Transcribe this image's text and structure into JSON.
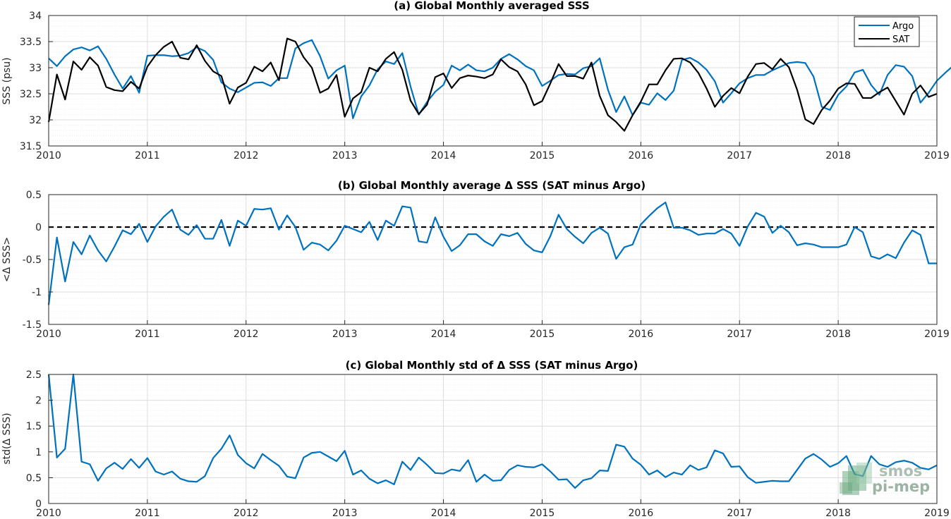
{
  "colors": {
    "argo": "#0072BD",
    "sat": "#000000",
    "grid": "#dcdcdc",
    "axis": "#262626"
  },
  "watermark": {
    "line1": "smos",
    "line2": "pi-mep",
    "icon": "smos-pimep-logo-icon"
  },
  "chart_data": [
    {
      "type": "line",
      "title": "(a) Global Monthly averaged SSS",
      "xlabel": "",
      "ylabel": "SSS (psu)",
      "xlim": [
        2010,
        2019
      ],
      "ylim": [
        31.5,
        34
      ],
      "xticks": [
        2010,
        2011,
        2012,
        2013,
        2014,
        2015,
        2016,
        2017,
        2018,
        2019
      ],
      "yticks": [
        31.5,
        32,
        32.5,
        33,
        33.5,
        34
      ],
      "ytick_labels": [
        "31.5",
        "32",
        "32.5",
        "33",
        "33.5",
        "34"
      ],
      "grid": true,
      "legend": "top-right",
      "start_year": 2010,
      "series": [
        {
          "name": "Argo",
          "color": "#0072BD",
          "values": [
            33.18,
            33.03,
            33.22,
            33.35,
            33.39,
            33.33,
            33.41,
            33.17,
            32.87,
            32.6,
            32.84,
            32.52,
            33.23,
            33.24,
            33.24,
            33.22,
            33.23,
            33.28,
            33.39,
            33.32,
            33.15,
            32.72,
            32.6,
            32.53,
            32.62,
            32.71,
            32.72,
            32.65,
            32.8,
            32.8,
            33.37,
            33.47,
            33.53,
            33.22,
            32.79,
            32.95,
            33.04,
            32.03,
            32.45,
            32.66,
            32.97,
            33.12,
            33.07,
            33.28,
            32.64,
            32.1,
            32.34,
            32.54,
            32.67,
            33.04,
            32.95,
            33.06,
            32.95,
            32.93,
            33.0,
            33.17,
            33.26,
            33.16,
            33.03,
            32.95,
            32.65,
            32.75,
            32.86,
            32.88,
            32.87,
            32.99,
            33.03,
            33.18,
            32.58,
            32.15,
            32.45,
            32.09,
            32.33,
            32.29,
            32.51,
            32.38,
            32.56,
            33.15,
            33.19,
            33.1,
            32.96,
            32.74,
            32.33,
            32.51,
            32.7,
            32.8,
            32.86,
            32.86,
            32.95,
            33.02,
            33.09,
            33.11,
            33.09,
            32.83,
            32.25,
            32.19,
            32.48,
            32.64,
            32.91,
            32.96,
            32.67,
            32.48,
            32.86,
            33.05,
            33.02,
            32.84,
            32.33,
            32.52,
            32.75,
            32.9,
            33.04
          ]
        },
        {
          "name": "SAT",
          "color": "#000000",
          "values": [
            31.96,
            32.87,
            32.39,
            33.12,
            32.96,
            33.2,
            33.04,
            32.63,
            32.57,
            32.55,
            32.73,
            32.6,
            33.02,
            33.24,
            33.4,
            33.5,
            33.19,
            33.16,
            33.43,
            33.13,
            32.93,
            32.84,
            32.31,
            32.62,
            32.71,
            33.02,
            32.93,
            33.1,
            32.76,
            33.56,
            33.5,
            33.2,
            33.0,
            32.52,
            32.6,
            32.86,
            32.06,
            32.41,
            32.53,
            33.0,
            32.93,
            33.17,
            33.3,
            32.96,
            32.37,
            32.11,
            32.29,
            32.82,
            32.89,
            32.61,
            32.8,
            32.85,
            32.83,
            32.8,
            32.87,
            33.16,
            33.01,
            32.93,
            32.68,
            32.28,
            32.36,
            32.7,
            33.07,
            32.84,
            32.84,
            32.79,
            33.1,
            32.46,
            32.09,
            31.96,
            31.79,
            32.09,
            32.35,
            32.68,
            32.68,
            32.95,
            33.17,
            33.18,
            33.1,
            32.9,
            32.6,
            32.25,
            32.46,
            32.61,
            32.51,
            32.83,
            33.07,
            33.09,
            32.97,
            33.17,
            33.01,
            32.58,
            32.01,
            31.92,
            32.19,
            32.37,
            32.6,
            32.7,
            32.69,
            32.42,
            32.42,
            32.53,
            32.62,
            32.36,
            32.1,
            32.5,
            32.66,
            32.44,
            32.5
          ]
        }
      ]
    },
    {
      "type": "line",
      "title": "(b) Global Monthly average Δ SSS (SAT minus Argo)",
      "xlabel": "",
      "ylabel": "<Δ SSS>",
      "xlim": [
        2010,
        2019
      ],
      "ylim": [
        -1.5,
        0.5
      ],
      "xticks": [
        2010,
        2011,
        2012,
        2013,
        2014,
        2015,
        2016,
        2017,
        2018,
        2019
      ],
      "yticks": [
        -1.5,
        -1,
        -0.5,
        0,
        0.5
      ],
      "ytick_labels": [
        "-1.5",
        "-1",
        "-0.5",
        "0",
        "0.5"
      ],
      "grid": true,
      "reference_line": 0,
      "start_year": 2010,
      "series": [
        {
          "color": "#0072BD",
          "values": [
            -1.2,
            -0.16,
            -0.84,
            -0.23,
            -0.42,
            -0.13,
            -0.36,
            -0.53,
            -0.3,
            -0.05,
            -0.11,
            0.05,
            -0.23,
            0.01,
            0.16,
            0.27,
            -0.04,
            -0.12,
            0.03,
            -0.18,
            -0.18,
            0.11,
            -0.29,
            0.1,
            0.02,
            0.28,
            0.27,
            0.29,
            -0.04,
            0.18,
            0.0,
            -0.35,
            -0.24,
            -0.27,
            -0.36,
            -0.21,
            0.02,
            -0.03,
            -0.08,
            0.08,
            -0.2,
            0.1,
            0.02,
            0.32,
            0.3,
            -0.22,
            -0.24,
            0.15,
            -0.15,
            -0.37,
            -0.28,
            -0.11,
            -0.11,
            -0.22,
            -0.29,
            -0.11,
            -0.14,
            -0.09,
            -0.26,
            -0.36,
            -0.39,
            -0.14,
            0.19,
            -0.03,
            -0.15,
            -0.25,
            -0.09,
            -0.01,
            -0.1,
            -0.49,
            -0.31,
            -0.27,
            0.04,
            0.17,
            0.29,
            0.38,
            -0.01,
            -0.01,
            -0.05,
            -0.12,
            -0.1,
            -0.1,
            -0.03,
            -0.1,
            -0.29,
            0.01,
            0.22,
            0.16,
            -0.09,
            0.02,
            -0.08,
            -0.28,
            -0.25,
            -0.27,
            -0.31,
            -0.31,
            -0.31,
            -0.27,
            0.0,
            -0.08,
            -0.45,
            -0.49,
            -0.42,
            -0.48,
            -0.24,
            -0.05,
            -0.12,
            -0.56,
            -0.56
          ]
        }
      ]
    },
    {
      "type": "line",
      "title": "(c) Global Monthly std of Δ SSS (SAT minus Argo)",
      "xlabel": "",
      "ylabel": "std(Δ SSS)",
      "xlim": [
        2010,
        2019
      ],
      "ylim": [
        0,
        2.5
      ],
      "xticks": [
        2010,
        2011,
        2012,
        2013,
        2014,
        2015,
        2016,
        2017,
        2018,
        2019
      ],
      "yticks": [
        0,
        0.5,
        1,
        1.5,
        2,
        2.5
      ],
      "ytick_labels": [
        "0",
        "0.5",
        "1",
        "1.5",
        "2",
        "2.5"
      ],
      "grid": true,
      "start_year": 2010,
      "series": [
        {
          "color": "#0072BD",
          "values": [
            2.5,
            0.89,
            1.06,
            2.5,
            0.81,
            0.76,
            0.44,
            0.68,
            0.79,
            0.67,
            0.86,
            0.69,
            0.88,
            0.62,
            0.56,
            0.62,
            0.48,
            0.43,
            0.42,
            0.53,
            0.88,
            1.06,
            1.32,
            0.94,
            0.78,
            0.68,
            0.96,
            0.84,
            0.73,
            0.52,
            0.49,
            0.89,
            0.98,
            1.0,
            0.91,
            0.82,
            1.02,
            0.56,
            0.64,
            0.48,
            0.39,
            0.45,
            0.37,
            0.81,
            0.65,
            0.89,
            0.75,
            0.59,
            0.58,
            0.66,
            0.63,
            0.84,
            0.42,
            0.56,
            0.44,
            0.45,
            0.65,
            0.74,
            0.71,
            0.7,
            0.76,
            0.62,
            0.46,
            0.47,
            0.3,
            0.45,
            0.49,
            0.64,
            0.63,
            1.14,
            1.1,
            0.87,
            0.75,
            0.56,
            0.64,
            0.51,
            0.6,
            0.56,
            0.74,
            0.65,
            0.7,
            1.03,
            0.97,
            0.71,
            0.72,
            0.51,
            0.4,
            0.42,
            0.44,
            0.43,
            0.43,
            0.65,
            0.87,
            0.96,
            0.85,
            0.71,
            0.78,
            0.92,
            0.57,
            0.53,
            0.92,
            0.76,
            0.71,
            0.8,
            0.83,
            0.79,
            0.69,
            0.66,
            0.74
          ]
        }
      ]
    }
  ]
}
